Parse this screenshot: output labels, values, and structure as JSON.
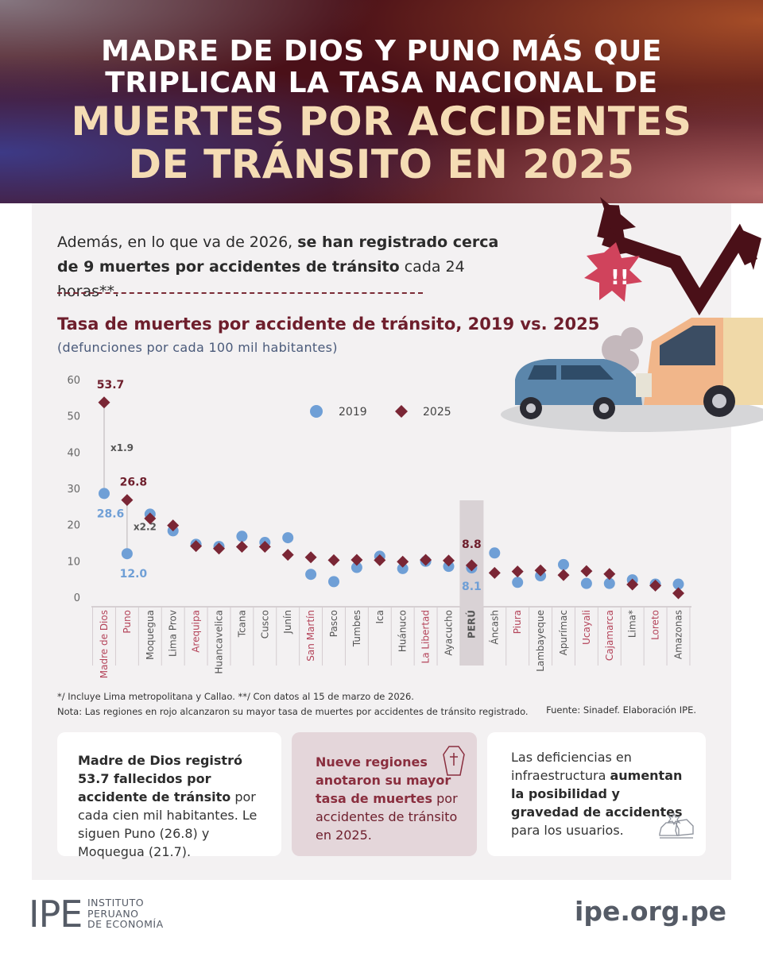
{
  "header": {
    "line1": "MADRE DE DIOS Y PUNO MÁS QUE",
    "line2": "TRIPLICAN LA TASA NACIONAL DE",
    "line3": "MUERTES POR ACCIDENTES",
    "line4": "DE TRÁNSITO EN 2025"
  },
  "intro": {
    "part1": "Además, en lo que va de 2026, ",
    "bold1": "se han registrado cerca de 9 muertes por accidentes de tránsito",
    "part2": " cada 24 horas**."
  },
  "chart_data": {
    "type": "scatter",
    "title": "Tasa de muertes por accidente de tránsito, 2019 vs. 2025",
    "subtitle": "(defunciones por cada 100 mil habitantes)",
    "ylim": [
      0,
      60
    ],
    "yticks": [
      "0",
      "10",
      "20",
      "30",
      "40",
      "50",
      "60"
    ],
    "categories": [
      "Madre de Dios",
      "Puno",
      "Moquegua",
      "Lima Prov",
      "Arequipa",
      "Huancavelica",
      "Tcana",
      "Cusco",
      "Junín",
      "San Martín",
      "Pasco",
      "Tumbes",
      "Ica",
      "Huánuco",
      "La Libertad",
      "Ayacucho",
      "PERÚ",
      "Áncash",
      "Piura",
      "Lambayeque",
      "Apurímac",
      "Ucayali",
      "Cajamarca",
      "Lima*",
      "Loreto",
      "Amazonas"
    ],
    "highlight_red": [
      "Madre de Dios",
      "Puno",
      "Arequipa",
      "San Martín",
      "La Libertad",
      "Piura",
      "Ucayali",
      "Cajamarca",
      "Loreto"
    ],
    "highlight_total": "PERÚ",
    "series": [
      {
        "name": "2019",
        "color": "#6f9fd6",
        "marker": "circle",
        "values": [
          28.6,
          12.0,
          22.9,
          18.3,
          14.6,
          14.0,
          16.8,
          15.1,
          16.4,
          6.3,
          4.3,
          8.2,
          11.3,
          7.9,
          9.9,
          8.5,
          8.1,
          12.2,
          4.1,
          5.9,
          9.0,
          3.8,
          3.8,
          4.8,
          3.6,
          3.6
        ]
      },
      {
        "name": "2025",
        "color": "#7a2635",
        "marker": "diamond",
        "values": [
          53.7,
          26.8,
          21.7,
          19.8,
          14.1,
          13.4,
          13.9,
          13.9,
          11.7,
          11.0,
          10.2,
          10.3,
          10.2,
          9.8,
          10.3,
          10.1,
          8.8,
          6.7,
          7.1,
          7.4,
          6.1,
          7.2,
          6.4,
          3.5,
          3.2,
          1.1
        ]
      }
    ],
    "annotations": [
      {
        "label": "53.7",
        "series": "2025",
        "category": "Madre de Dios"
      },
      {
        "label": "28.6",
        "series": "2019",
        "category": "Madre de Dios"
      },
      {
        "label": "x1.9",
        "category": "Madre de Dios"
      },
      {
        "label": "26.8",
        "series": "2025",
        "category": "Puno"
      },
      {
        "label": "12.0",
        "series": "2019",
        "category": "Puno"
      },
      {
        "label": "x2.2",
        "category": "Puno"
      },
      {
        "label": "8.8",
        "series": "2025",
        "category": "PERÚ"
      },
      {
        "label": "8.1",
        "series": "2019",
        "category": "PERÚ"
      }
    ],
    "legend": "top-center"
  },
  "notes": {
    "line1": "*/ Incluye Lima metropolitana y Callao. **/ Con datos al 15 de marzo de 2026.",
    "line2": "Nota: Las regiones en rojo alcanzaron su mayor tasa de muertes por accidentes de tránsito registrado.",
    "source": "Fuente: Sinadef. Elaboración IPE."
  },
  "cards": {
    "card1_bold": "Madre de Dios registró 53.7 fallecidos por accidente de tránsito",
    "card1_rest": " por cada cien mil habitantes. Le siguen Puno (26.8) y Moquegua (21.7).",
    "card2_bold": "Nueve regiones anotaron su mayor tasa de muertes",
    "card2_rest": " por accidentes de tránsito en 2025.",
    "card3_pre": "Las deficiencias en infraestructura ",
    "card3_bold": "aumentan la posibilidad y gravedad de accidentes",
    "card3_rest": " para los usuarios."
  },
  "footer": {
    "logo_letters": "IPE",
    "logo_line1": "INSTITUTO",
    "logo_line2": "PERUANO",
    "logo_line3": "DE ECONOMÍA",
    "site": "ipe.org.pe"
  },
  "colors": {
    "accent": "#6e1e2c",
    "blue": "#6f9fd6",
    "red_label": "#b4445a"
  }
}
